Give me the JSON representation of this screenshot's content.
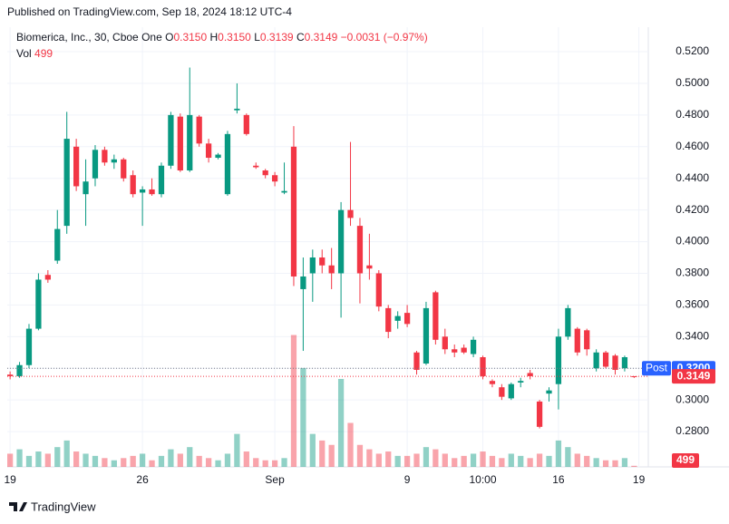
{
  "header": {
    "text": "Published on TradingView.com, Sep 18, 2024 18:12 UTC-4"
  },
  "footer": {
    "brand": "TradingView"
  },
  "chart_data": {
    "type": "candlestick",
    "legend": {
      "symbol": "Biomerica, Inc., 30, Cboe One",
      "o_label": "O",
      "o": "0.3150",
      "h_label": "H",
      "h": "0.3150",
      "l_label": "L",
      "l": "0.3139",
      "c_label": "C",
      "c": "0.3149",
      "change": "−0.0031 (−0.97%)",
      "vol_label": "Vol"
    },
    "up_color": "#089981",
    "down_color": "#f23645",
    "open": [
      0.316,
      0.315,
      0.322,
      0.345,
      0.379,
      0.388,
      0.41,
      0.46,
      0.43,
      0.44,
      0.458,
      0.45,
      0.452,
      0.442,
      0.431,
      0.433,
      0.43,
      0.448,
      0.479,
      0.445,
      0.479,
      0.462,
      0.453,
      0.43,
      0.483,
      0.48,
      0.448,
      0.445,
      0.442,
      0.431,
      0.46,
      0.37,
      0.38,
      0.39,
      0.385,
      0.38,
      0.42,
      0.41,
      0.385,
      0.38,
      0.358,
      0.35,
      0.355,
      0.33,
      0.323,
      0.368,
      0.34,
      0.332,
      0.333,
      0.329,
      0.327,
      0.312,
      0.308,
      0.301,
      0.311,
      0.317,
      0.299,
      0.304,
      0.31,
      0.34,
      0.345,
      0.344,
      0.32,
      0.33,
      0.328,
      0.32,
      0.315
    ],
    "high": [
      0.318,
      0.324,
      0.348,
      0.38,
      0.382,
      0.42,
      0.482,
      0.465,
      0.452,
      0.461,
      0.46,
      0.455,
      0.453,
      0.445,
      0.435,
      0.44,
      0.45,
      0.482,
      0.481,
      0.51,
      0.48,
      0.465,
      0.456,
      0.47,
      0.5,
      0.481,
      0.45,
      0.446,
      0.444,
      0.45,
      0.473,
      0.39,
      0.395,
      0.395,
      0.396,
      0.425,
      0.463,
      0.415,
      0.405,
      0.382,
      0.36,
      0.356,
      0.36,
      0.331,
      0.362,
      0.369,
      0.345,
      0.335,
      0.335,
      0.34,
      0.328,
      0.313,
      0.31,
      0.311,
      0.314,
      0.319,
      0.3,
      0.308,
      0.345,
      0.36,
      0.346,
      0.345,
      0.332,
      0.331,
      0.329,
      0.328,
      0.315
    ],
    "low": [
      0.313,
      0.314,
      0.32,
      0.344,
      0.374,
      0.386,
      0.405,
      0.432,
      0.41,
      0.435,
      0.448,
      0.446,
      0.438,
      0.428,
      0.41,
      0.429,
      0.428,
      0.446,
      0.444,
      0.444,
      0.46,
      0.45,
      0.452,
      0.429,
      0.481,
      0.467,
      0.446,
      0.44,
      0.435,
      0.43,
      0.372,
      0.331,
      0.362,
      0.38,
      0.37,
      0.352,
      0.41,
      0.361,
      0.376,
      0.356,
      0.339,
      0.345,
      0.346,
      0.316,
      0.322,
      0.335,
      0.329,
      0.327,
      0.329,
      0.327,
      0.313,
      0.308,
      0.3,
      0.3,
      0.308,
      0.313,
      0.282,
      0.299,
      0.294,
      0.338,
      0.328,
      0.328,
      0.318,
      0.32,
      0.316,
      0.318,
      0.3139
    ],
    "close": [
      0.315,
      0.322,
      0.345,
      0.376,
      0.376,
      0.408,
      0.465,
      0.435,
      0.438,
      0.458,
      0.45,
      0.452,
      0.44,
      0.43,
      0.433,
      0.43,
      0.448,
      0.48,
      0.445,
      0.48,
      0.462,
      0.453,
      0.455,
      0.468,
      0.484,
      0.468,
      0.447,
      0.442,
      0.438,
      0.432,
      0.378,
      0.378,
      0.39,
      0.385,
      0.38,
      0.42,
      0.415,
      0.38,
      0.383,
      0.359,
      0.343,
      0.353,
      0.348,
      0.319,
      0.358,
      0.338,
      0.332,
      0.33,
      0.33,
      0.338,
      0.315,
      0.31,
      0.302,
      0.31,
      0.312,
      0.315,
      0.283,
      0.306,
      0.34,
      0.358,
      0.33,
      0.332,
      0.33,
      0.321,
      0.319,
      0.327,
      0.3149
    ],
    "volume": [
      6000,
      8000,
      5000,
      7000,
      6000,
      9000,
      12000,
      7000,
      6000,
      5000,
      4000,
      3000,
      4000,
      5000,
      6000,
      3000,
      5000,
      8000,
      6000,
      9000,
      5000,
      4000,
      3000,
      6000,
      15000,
      7000,
      4000,
      3000,
      3000,
      4000,
      60000,
      45000,
      15000,
      12000,
      10000,
      40000,
      20000,
      10000,
      8000,
      6000,
      7000,
      5000,
      5000,
      6000,
      9000,
      8000,
      6000,
      4000,
      5000,
      6000,
      7000,
      5000,
      4000,
      6000,
      5000,
      4000,
      6000,
      5000,
      12000,
      9000,
      6000,
      5000,
      4000,
      3000,
      3000,
      4000,
      499
    ],
    "vlim": [
      0,
      200000
    ],
    "xlim": [
      -0.3,
      67.5
    ],
    "xticks": [
      {
        "value": 0,
        "label": "19"
      },
      {
        "value": 14,
        "label": "26"
      },
      {
        "value": 28,
        "label": "Sep"
      },
      {
        "value": 42,
        "label": "9"
      },
      {
        "value": 50,
        "label": "10:00"
      },
      {
        "value": 58,
        "label": "16"
      },
      {
        "value": 66.5,
        "label": "19"
      }
    ],
    "ylim": [
      0.2577,
      0.5355
    ],
    "yticks": [
      {
        "value": 0.28,
        "label": "0.2800"
      },
      {
        "value": 0.3,
        "label": "0.3000"
      },
      {
        "value": 0.32,
        "label": "0.3200"
      },
      {
        "value": 0.34,
        "label": "0.3400"
      },
      {
        "value": 0.36,
        "label": "0.3600"
      },
      {
        "value": 0.38,
        "label": "0.3800"
      },
      {
        "value": 0.4,
        "label": "0.4000"
      },
      {
        "value": 0.42,
        "label": "0.4200"
      },
      {
        "value": 0.44,
        "label": "0.4400"
      },
      {
        "value": 0.46,
        "label": "0.4600"
      },
      {
        "value": 0.48,
        "label": "0.4800"
      },
      {
        "value": 0.5,
        "label": "0.5000"
      },
      {
        "value": 0.52,
        "label": "0.5200"
      }
    ],
    "grid": true,
    "post_price": {
      "name": "Post",
      "value": 0.32,
      "label": "0.3200",
      "color": "#2962ff"
    },
    "last_price": {
      "value": 0.3149,
      "label": "0.3149",
      "color": "#f23645"
    }
  }
}
